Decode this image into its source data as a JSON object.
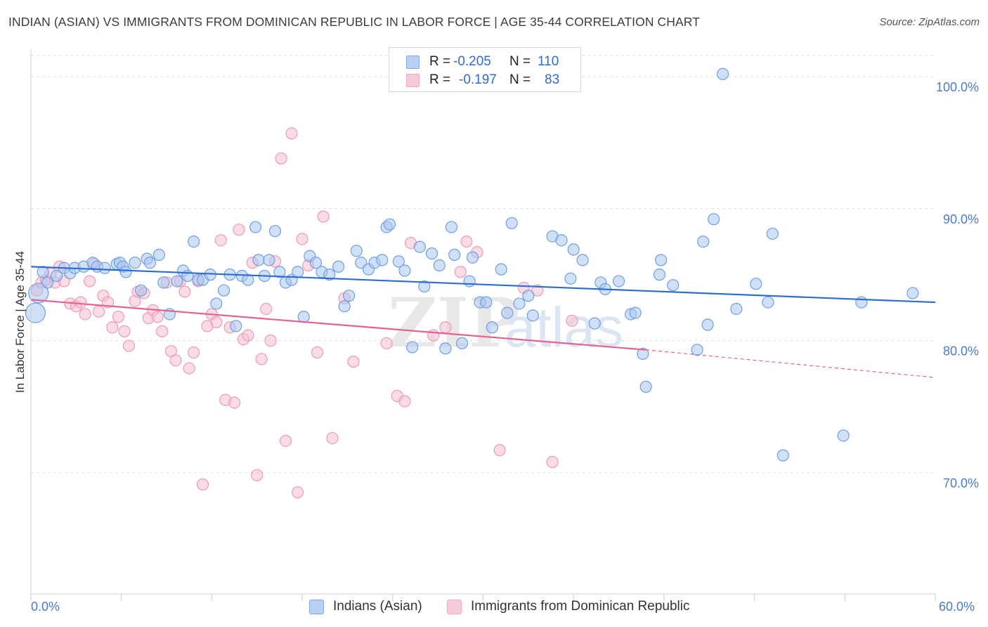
{
  "title": "INDIAN (ASIAN) VS IMMIGRANTS FROM DOMINICAN REPUBLIC IN LABOR FORCE | AGE 35-44 CORRELATION CHART",
  "source": "Source: ZipAtlas.com",
  "watermark": {
    "zip": "ZIP",
    "atlas": "atlas"
  },
  "legend": {
    "rows": [
      {
        "r_label": "R =",
        "r_value": "-0.205",
        "n_label": "N =",
        "n_value": "110",
        "color": "#6fa0e8"
      },
      {
        "r_label": "R =",
        "r_value": "-0.197",
        "n_label": "N =",
        "n_value": "83",
        "color": "#f0a0bb"
      }
    ]
  },
  "colors": {
    "blue_fill": "#a9c6f0",
    "blue_stroke": "#6e9fe4",
    "blue_line": "#2f6ccf",
    "pink_fill": "#f5bfd0",
    "pink_stroke": "#ee9ab5",
    "pink_line": "#e3628f",
    "grid": "#dedede",
    "axis_text": "#4a7cc7"
  },
  "chart_data": {
    "type": "scatter",
    "title": "INDIAN (ASIAN) VS IMMIGRANTS FROM DOMINICAN REPUBLIC IN LABOR FORCE | AGE 35-44 CORRELATION CHART",
    "xlabel": "",
    "ylabel": "In Labor Force | Age 35-44",
    "xlim": [
      0,
      60
    ],
    "ylim": [
      60.8,
      101.6
    ],
    "x_tick_labels": [
      "0.0%",
      "60.0%"
    ],
    "y_ticks": [
      70,
      80,
      90,
      100
    ],
    "y_tick_labels": [
      "70.0%",
      "80.0%",
      "90.0%",
      "100.0%"
    ],
    "grid": true,
    "legend_position": "top-center",
    "series": [
      {
        "name": "Indians (Asian)",
        "r": -0.205,
        "n": 110,
        "trend": {
          "x": [
            0,
            60
          ],
          "y": [
            85.6,
            82.9
          ]
        },
        "points": [
          [
            0.5,
            83.6,
            2
          ],
          [
            0.3,
            82.1,
            2
          ],
          [
            0.8,
            85.2,
            1
          ],
          [
            1.1,
            84.4,
            1
          ],
          [
            1.7,
            84.9,
            1
          ],
          [
            2.2,
            85.5,
            1
          ],
          [
            2.6,
            85.1,
            1
          ],
          [
            2.9,
            85.5,
            1
          ],
          [
            3.5,
            85.6,
            1
          ],
          [
            4.1,
            85.9,
            1
          ],
          [
            4.4,
            85.6,
            1
          ],
          [
            4.9,
            85.5,
            1
          ],
          [
            5.7,
            85.8,
            1
          ],
          [
            5.9,
            85.9,
            1
          ],
          [
            6.1,
            85.6,
            1
          ],
          [
            6.3,
            85.2,
            1
          ],
          [
            6.9,
            85.9,
            1
          ],
          [
            7.3,
            83.8,
            1
          ],
          [
            7.7,
            86.2,
            1
          ],
          [
            7.9,
            85.9,
            1
          ],
          [
            8.5,
            86.5,
            1
          ],
          [
            8.8,
            84.4,
            1
          ],
          [
            9.2,
            82.0,
            1
          ],
          [
            9.7,
            84.5,
            1
          ],
          [
            10.1,
            85.3,
            1
          ],
          [
            10.4,
            84.9,
            1
          ],
          [
            10.8,
            87.5,
            1
          ],
          [
            11.1,
            84.6,
            1
          ],
          [
            11.4,
            84.6,
            1
          ],
          [
            11.9,
            85.0,
            1
          ],
          [
            12.3,
            82.8,
            1
          ],
          [
            12.8,
            83.8,
            1
          ],
          [
            13.2,
            85.0,
            1
          ],
          [
            13.6,
            81.1,
            1
          ],
          [
            14.0,
            84.9,
            1
          ],
          [
            14.4,
            84.6,
            1
          ],
          [
            14.9,
            88.6,
            1
          ],
          [
            15.1,
            86.1,
            1
          ],
          [
            15.5,
            84.9,
            1
          ],
          [
            15.8,
            86.1,
            1
          ],
          [
            16.2,
            88.3,
            1
          ],
          [
            16.5,
            85.2,
            1
          ],
          [
            16.9,
            84.4,
            1
          ],
          [
            17.3,
            84.6,
            1
          ],
          [
            17.7,
            85.2,
            1
          ],
          [
            18.1,
            81.8,
            1
          ],
          [
            18.5,
            86.4,
            1
          ],
          [
            18.9,
            85.9,
            1
          ],
          [
            19.3,
            85.2,
            1
          ],
          [
            19.8,
            85.0,
            1
          ],
          [
            20.4,
            85.6,
            1
          ],
          [
            20.8,
            82.6,
            1
          ],
          [
            21.1,
            83.4,
            1
          ],
          [
            21.6,
            86.8,
            1
          ],
          [
            21.9,
            85.9,
            1
          ],
          [
            22.4,
            85.4,
            1
          ],
          [
            22.8,
            85.9,
            1
          ],
          [
            23.3,
            86.1,
            1
          ],
          [
            23.6,
            88.6,
            1
          ],
          [
            23.8,
            88.8,
            1
          ],
          [
            24.4,
            86.0,
            1
          ],
          [
            24.8,
            85.3,
            1
          ],
          [
            25.3,
            79.5,
            1
          ],
          [
            25.8,
            87.1,
            1
          ],
          [
            26.1,
            84.1,
            1
          ],
          [
            26.6,
            86.6,
            1
          ],
          [
            27.1,
            85.7,
            1
          ],
          [
            27.5,
            79.4,
            1
          ],
          [
            27.9,
            88.6,
            1
          ],
          [
            28.1,
            86.5,
            1
          ],
          [
            28.6,
            79.8,
            1
          ],
          [
            29.1,
            84.5,
            1
          ],
          [
            29.3,
            86.3,
            1
          ],
          [
            29.8,
            82.9,
            1
          ],
          [
            30.2,
            82.9,
            1
          ],
          [
            30.6,
            81.0,
            1
          ],
          [
            31.2,
            85.4,
            1
          ],
          [
            31.6,
            82.1,
            1
          ],
          [
            31.9,
            88.9,
            1
          ],
          [
            32.4,
            82.8,
            1
          ],
          [
            33.0,
            83.4,
            1
          ],
          [
            33.3,
            81.9,
            1
          ],
          [
            34.6,
            87.9,
            1
          ],
          [
            35.2,
            87.6,
            1
          ],
          [
            36.0,
            86.9,
            1
          ],
          [
            35.8,
            84.7,
            1
          ],
          [
            36.6,
            86.1,
            1
          ],
          [
            37.4,
            81.3,
            1
          ],
          [
            37.8,
            84.4,
            1
          ],
          [
            38.1,
            83.9,
            1
          ],
          [
            39.0,
            84.5,
            1
          ],
          [
            39.8,
            82.0,
            1
          ],
          [
            40.1,
            82.1,
            1
          ],
          [
            40.8,
            76.5,
            1
          ],
          [
            40.6,
            79.0,
            1
          ],
          [
            41.8,
            86.1,
            1
          ],
          [
            41.7,
            85.0,
            1
          ],
          [
            42.6,
            84.2,
            1
          ],
          [
            44.2,
            79.3,
            1
          ],
          [
            44.6,
            87.5,
            1
          ],
          [
            44.9,
            81.2,
            1
          ],
          [
            45.3,
            89.2,
            1
          ],
          [
            45.9,
            100.2,
            1
          ],
          [
            46.8,
            82.4,
            1
          ],
          [
            48.1,
            84.3,
            1
          ],
          [
            48.9,
            82.9,
            1
          ],
          [
            49.2,
            88.1,
            1
          ],
          [
            49.9,
            71.3,
            1
          ],
          [
            53.9,
            72.8,
            1
          ],
          [
            55.1,
            82.9,
            1
          ],
          [
            58.5,
            83.6,
            1
          ]
        ]
      },
      {
        "name": "Immigrants from Dominican Republic",
        "r": -0.197,
        "n": 83,
        "trend": {
          "x": [
            0,
            40.8
          ],
          "y": [
            83.1,
            79.3
          ]
        },
        "trend_dashed": {
          "x": [
            40.8,
            60
          ],
          "y": [
            79.3,
            77.2
          ]
        },
        "points": [
          [
            0.4,
            83.8,
            1
          ],
          [
            0.7,
            84.4,
            1
          ],
          [
            1.0,
            84.6,
            1
          ],
          [
            1.3,
            85.1,
            1
          ],
          [
            1.6,
            84.4,
            1
          ],
          [
            1.9,
            85.6,
            1
          ],
          [
            2.2,
            84.5,
            1
          ],
          [
            2.6,
            82.8,
            1
          ],
          [
            3.0,
            82.6,
            1
          ],
          [
            3.3,
            82.9,
            1
          ],
          [
            3.6,
            82.0,
            1
          ],
          [
            3.9,
            84.5,
            1
          ],
          [
            4.2,
            85.8,
            1
          ],
          [
            4.5,
            82.2,
            1
          ],
          [
            4.8,
            83.4,
            1
          ],
          [
            5.1,
            82.9,
            1
          ],
          [
            5.4,
            81.0,
            1
          ],
          [
            5.8,
            81.8,
            1
          ],
          [
            6.2,
            80.7,
            1
          ],
          [
            6.5,
            79.6,
            1
          ],
          [
            6.9,
            83.0,
            1
          ],
          [
            7.1,
            83.7,
            1
          ],
          [
            7.5,
            83.6,
            1
          ],
          [
            7.8,
            81.7,
            1
          ],
          [
            8.1,
            82.3,
            1
          ],
          [
            8.4,
            81.8,
            1
          ],
          [
            8.7,
            80.7,
            1
          ],
          [
            9.0,
            84.4,
            1
          ],
          [
            9.3,
            79.2,
            1
          ],
          [
            9.6,
            78.5,
            1
          ],
          [
            9.9,
            84.5,
            1
          ],
          [
            10.2,
            83.7,
            1
          ],
          [
            10.5,
            77.9,
            1
          ],
          [
            10.8,
            79.1,
            1
          ],
          [
            11.1,
            84.5,
            1
          ],
          [
            11.4,
            69.1,
            1
          ],
          [
            11.7,
            81.1,
            1
          ],
          [
            12.0,
            82.0,
            1
          ],
          [
            12.3,
            81.4,
            1
          ],
          [
            12.6,
            87.6,
            1
          ],
          [
            12.9,
            75.5,
            1
          ],
          [
            13.2,
            81.0,
            1
          ],
          [
            13.5,
            75.3,
            1
          ],
          [
            13.8,
            88.4,
            1
          ],
          [
            14.1,
            80.1,
            1
          ],
          [
            14.4,
            80.4,
            1
          ],
          [
            14.7,
            85.9,
            1
          ],
          [
            15.0,
            69.8,
            1
          ],
          [
            15.3,
            78.6,
            1
          ],
          [
            15.6,
            82.4,
            1
          ],
          [
            15.9,
            80.0,
            1
          ],
          [
            16.2,
            86.0,
            1
          ],
          [
            16.6,
            93.8,
            1
          ],
          [
            16.9,
            72.4,
            1
          ],
          [
            17.3,
            95.7,
            1
          ],
          [
            17.7,
            68.5,
            1
          ],
          [
            18.0,
            87.7,
            1
          ],
          [
            18.4,
            85.7,
            1
          ],
          [
            19.0,
            79.1,
            1
          ],
          [
            19.4,
            89.4,
            1
          ],
          [
            20.0,
            72.6,
            1
          ],
          [
            20.8,
            83.2,
            1
          ],
          [
            21.4,
            78.4,
            1
          ],
          [
            23.6,
            79.8,
            1
          ],
          [
            24.3,
            75.8,
            1
          ],
          [
            24.8,
            75.4,
            1
          ],
          [
            25.2,
            87.4,
            1
          ],
          [
            26.7,
            80.4,
            1
          ],
          [
            27.5,
            81.0,
            1
          ],
          [
            28.5,
            85.2,
            1
          ],
          [
            28.9,
            87.5,
            1
          ],
          [
            29.6,
            86.7,
            1
          ],
          [
            31.1,
            71.7,
            1
          ],
          [
            32.7,
            84.0,
            1
          ],
          [
            33.6,
            83.8,
            1
          ],
          [
            34.6,
            70.8,
            1
          ],
          [
            35.9,
            81.5,
            1
          ]
        ]
      }
    ]
  },
  "x_labels": {
    "left": "0.0%",
    "right": "60.0%"
  },
  "bottom_legend": {
    "items": [
      {
        "label": "Indians (Asian)"
      },
      {
        "label": "Immigrants from Dominican Republic"
      }
    ]
  }
}
